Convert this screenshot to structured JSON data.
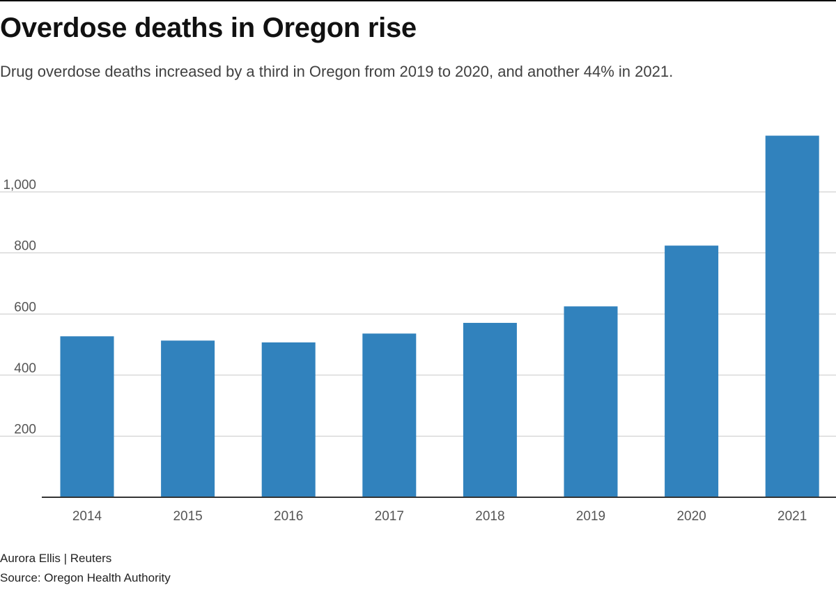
{
  "chart_data": {
    "type": "bar",
    "title": "Overdose deaths in Oregon rise",
    "subtitle": "Drug overdose deaths increased by a third in Oregon from 2019 to 2020, and another 44% in 2021.",
    "categories": [
      "2014",
      "2015",
      "2016",
      "2017",
      "2018",
      "2019",
      "2020",
      "2021"
    ],
    "values": [
      527,
      513,
      507,
      536,
      571,
      625,
      824,
      1184
    ],
    "ylim": [
      0,
      1250
    ],
    "yticks": [
      200,
      400,
      600,
      800,
      1000
    ],
    "ytick_labels": [
      "200",
      "400",
      "600",
      "800",
      "1,000"
    ],
    "xlabel": "",
    "ylabel": "",
    "grid": true,
    "bar_color": "#3182bd"
  },
  "footer": {
    "credit": "Aurora Ellis | Reuters",
    "source": "Source: Oregon Health Authority"
  }
}
